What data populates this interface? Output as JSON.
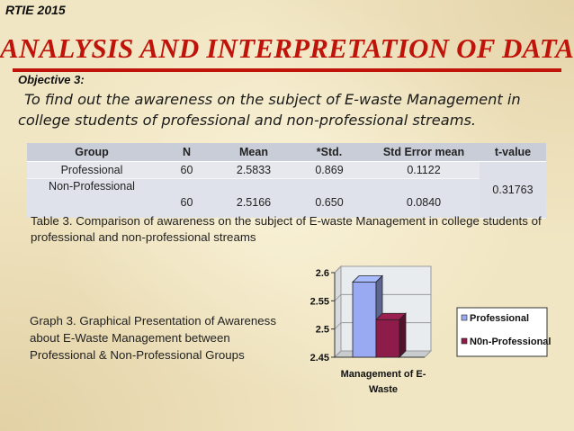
{
  "header": {
    "label": "RTIE 2015"
  },
  "title": "ANALYSIS AND INTERPRETATION OF DATA",
  "objective": {
    "label": "Objective 3:",
    "line1": "To find out the awareness on the subject  of E-waste Management in",
    "line2": "college students of professional and non-professional streams."
  },
  "table": {
    "headers": [
      "Group",
      "N",
      "Mean",
      "*Std.",
      "Std Error mean",
      "t-value"
    ],
    "rows": [
      {
        "group": "Professional",
        "n": "60",
        "mean": "2.5833",
        "std": "0.869",
        "sem": "0.1122"
      },
      {
        "group": "Non-Professional",
        "n": "60",
        "mean": "2.5166",
        "std": "0.650",
        "sem": "0.0840"
      }
    ],
    "t_value": "0.31763"
  },
  "table_caption": "Table 3.   Comparison of awareness on the subject of E-waste Management in college students of professional and non-professional streams",
  "graph_caption": "Graph 3.  Graphical Presentation of Awareness about E-Waste Management between Professional & Non-Professional Groups",
  "chart_data": {
    "type": "bar",
    "categories": [
      "Management of E-Waste"
    ],
    "x_tick_lines": [
      "Management of E-",
      "Waste"
    ],
    "series": [
      {
        "name": "Professional",
        "values": [
          2.5833
        ],
        "color": "#9aaaf2"
      },
      {
        "name": "N0n-Professional",
        "values": [
          2.5166
        ],
        "color": "#8e1c4a"
      }
    ],
    "ylim": [
      2.45,
      2.6
    ],
    "y_ticks": [
      "2.45",
      "2.5",
      "2.55",
      "2.6"
    ],
    "legend": "right",
    "grid": true,
    "three_d": true
  }
}
